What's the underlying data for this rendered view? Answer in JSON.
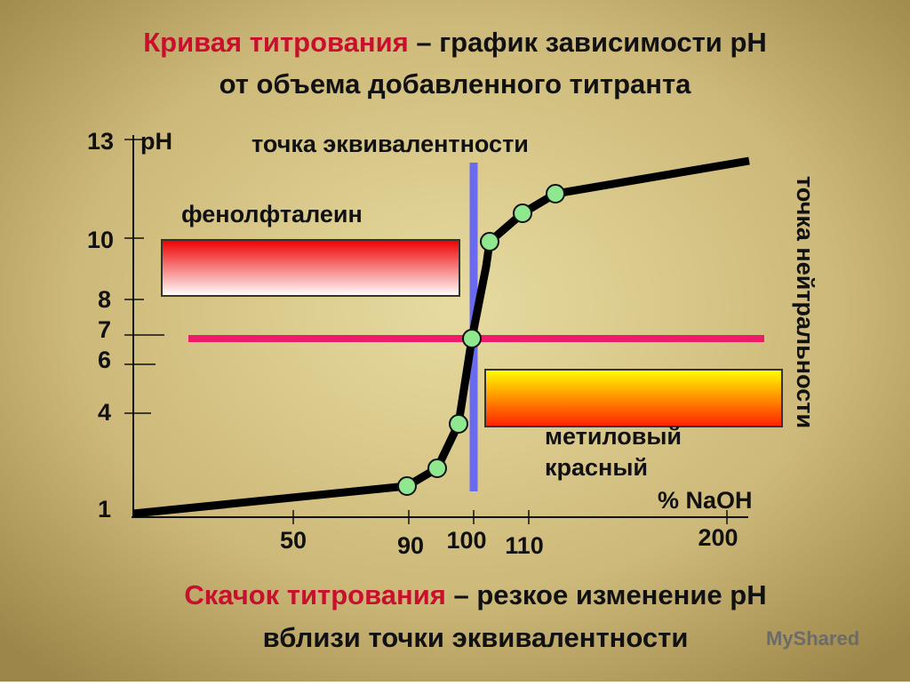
{
  "title": {
    "highlight": "Кривая титрования",
    "line1_rest": "– график зависимости pH",
    "line2": "от объема добавленного титранта"
  },
  "chart": {
    "y_axis_label": "pH",
    "y_tick_labels": [
      "13",
      "10",
      "8",
      "7",
      "6",
      "4",
      "1"
    ],
    "x_tick_labels": [
      "50",
      "90",
      "100",
      "110",
      "200"
    ],
    "x_axis_label": "% NaOH",
    "equivalence_label": "точка эквивалентности",
    "neutrality_label": "точка нейтральности",
    "indicator_1": "фенолфталеин",
    "indicator_2_lines": [
      "метиловый",
      "красный"
    ]
  },
  "footer": {
    "highlight": "Скачок титрования",
    "line1_rest": "– резкое изменение pH",
    "line2": "вблизи точки эквивалентности"
  },
  "watermark": "MyShared"
}
